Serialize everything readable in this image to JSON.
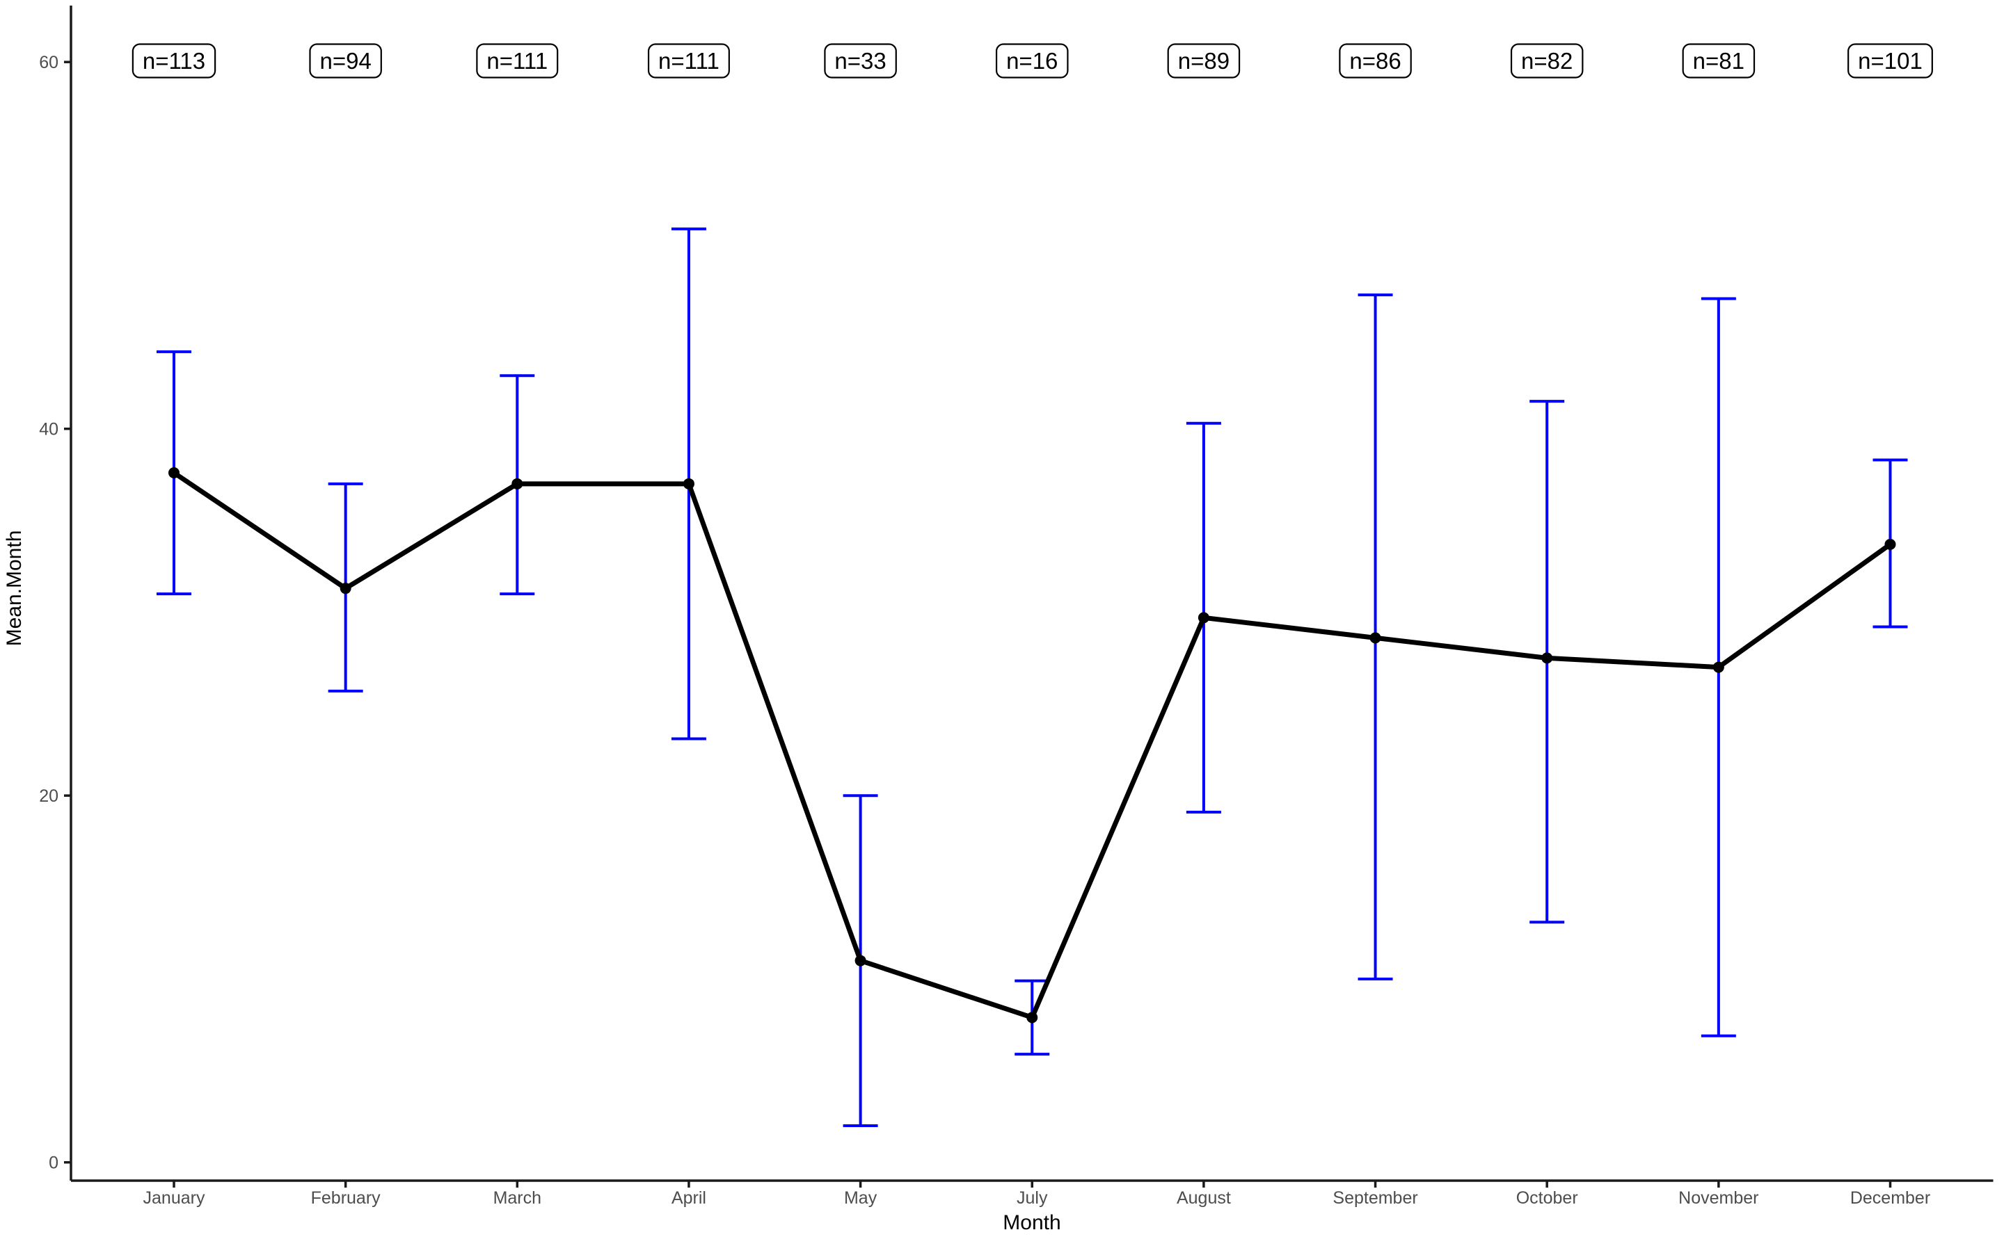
{
  "chart_data": {
    "type": "line",
    "title": "",
    "xlabel": "Month",
    "ylabel": "Mean.Month",
    "categories": [
      "January",
      "February",
      "March",
      "April",
      "May",
      "July",
      "August",
      "September",
      "October",
      "November",
      "December"
    ],
    "series": [
      {
        "name": "Mean.Month",
        "values": [
          37.6,
          31.3,
          37.0,
          37.0,
          11.0,
          7.9,
          29.7,
          28.6,
          27.5,
          27.0,
          33.7
        ]
      }
    ],
    "error_bars": {
      "lower": [
        31.0,
        25.7,
        31.0,
        23.1,
        2.0,
        5.9,
        19.1,
        10.0,
        13.1,
        6.9,
        29.2
      ],
      "upper": [
        44.2,
        37.0,
        42.9,
        50.9,
        20.0,
        9.9,
        40.3,
        47.3,
        41.5,
        47.1,
        38.3
      ]
    },
    "point_labels": [
      "n=113",
      "n=94",
      "n=111",
      "n=111",
      "n=33",
      "n=16",
      "n=89",
      "n=86",
      "n=82",
      "n=81",
      "n=101"
    ],
    "point_label_y": 60.0,
    "y_ticks": [
      0,
      20,
      40,
      60
    ],
    "ylim": [
      0,
      63
    ],
    "grid": false,
    "legend_position": "none",
    "colors": {
      "error_bar": "#0000ff",
      "line": "#000000",
      "point": "#000000",
      "axis_line": "#1a1a1a",
      "axis_text": "#4d4d4d",
      "axis_title": "#000000",
      "label_border": "#000000",
      "label_fill": "#ffffff",
      "background": "#ffffff"
    }
  }
}
